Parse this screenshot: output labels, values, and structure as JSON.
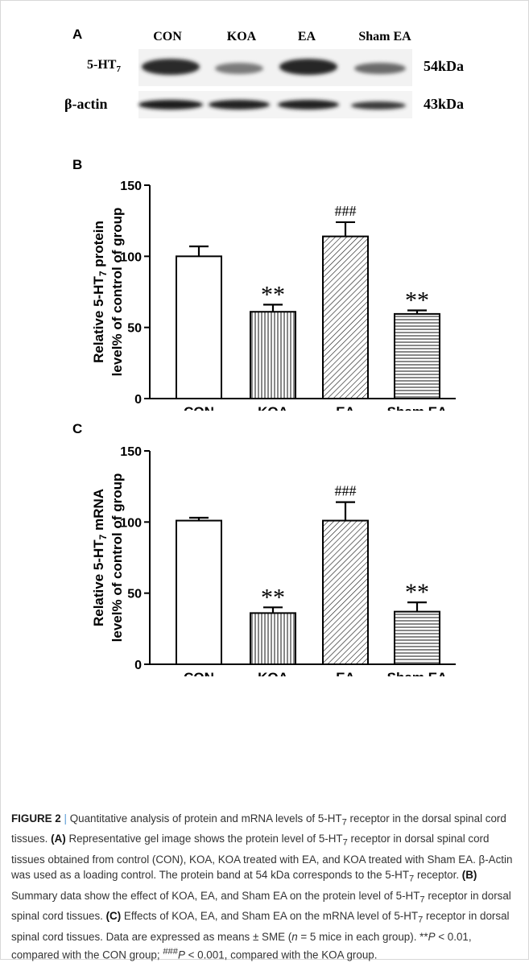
{
  "figure": {
    "panel_a": {
      "label": "A",
      "lanes": [
        "CON",
        "KOA",
        "EA",
        "Sham EA"
      ],
      "row1_label": "5-HT",
      "row1_label_sub": "7",
      "row1_size": "54kDa",
      "row2_label": "β-actin",
      "row2_size": "43kDa"
    },
    "caption": {
      "figure_no": "FIGURE 2",
      "sep": "|",
      "text_1": " Quantitative analysis of protein and mRNA levels of 5-HT",
      "text_1_sub": "7",
      "text_2": " receptor in the dorsal spinal cord tissues. ",
      "a_tag": "(A)",
      "text_3": " Representative gel image shows the protein level of 5-HT",
      "text_3_sub": "7",
      "text_4": " receptor in dorsal spinal cord tissues obtained from control (CON), KOA, KOA treated with EA, and KOA treated with Sham EA. β-Actin was used as a loading control. The protein band at 54 kDa corresponds to the 5-HT",
      "text_4_sub": "7",
      "text_5": " receptor. ",
      "b_tag": "(B)",
      "text_6": " Summary data show the effect of KOA, EA, and Sham EA on the protein level of 5-HT",
      "text_6_sub": "7",
      "text_7": " receptor in dorsal spinal cord tissues. ",
      "c_tag": "(C)",
      "text_8": " Effects of KOA, EA, and Sham EA on the mRNA level of 5-HT",
      "text_8_sub": "7",
      "text_9": " receptor in dorsal spinal cord tissues. Data are expressed as means ± SME (",
      "text_9_n": "n",
      "text_10": " = 5 mice in each group). **",
      "text_10_p": "P",
      "text_11": " < 0.01, compared with the CON group; ",
      "text_11_hash": "###",
      "text_11_p": "P",
      "text_12": " < 0.001, compared with the KOA group."
    }
  },
  "chart_data": [
    {
      "type": "bar",
      "panel": "B",
      "categories": [
        "CON",
        "KOA",
        "EA",
        "Sham EA"
      ],
      "values": [
        100,
        61,
        114,
        59.5
      ],
      "errors": [
        7,
        5,
        10,
        2.5
      ],
      "annotations": [
        "",
        "**",
        "###",
        "**"
      ],
      "ylabel_line1": "Relative 5-HT",
      "ylabel_line1_sub": "7",
      "ylabel_line1_end": " protein",
      "ylabel_line2": "level% of control of group",
      "ylim": [
        0,
        150
      ],
      "yticks": [
        0,
        50,
        100,
        150
      ],
      "patterns": [
        "none",
        "vertical",
        "diagonal",
        "horizontal"
      ]
    },
    {
      "type": "bar",
      "panel": "C",
      "categories": [
        "CON",
        "KOA",
        "EA",
        "Sham EA"
      ],
      "values": [
        101,
        36,
        101,
        37
      ],
      "errors": [
        2,
        4,
        13,
        6.5
      ],
      "annotations": [
        "",
        "**",
        "###",
        "**"
      ],
      "ylabel_line1": "Relative 5-HT",
      "ylabel_line1_sub": "7",
      "ylabel_line1_end": " mRNA",
      "ylabel_line2": "level% of control of group",
      "ylim": [
        0,
        150
      ],
      "yticks": [
        0,
        50,
        100,
        150
      ],
      "patterns": [
        "none",
        "vertical",
        "diagonal",
        "horizontal"
      ]
    }
  ]
}
